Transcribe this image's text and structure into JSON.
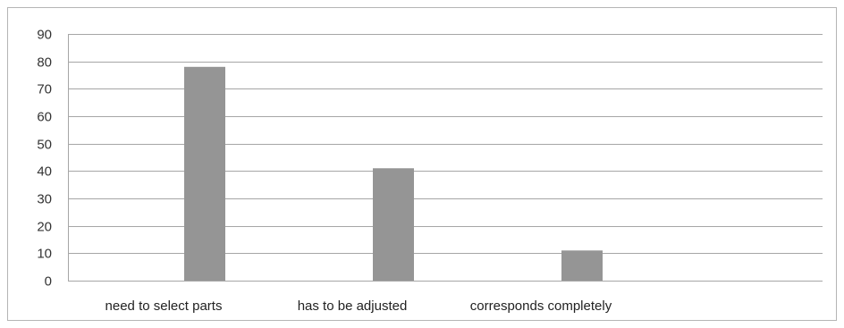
{
  "chart_data": {
    "type": "bar",
    "categories": [
      "need to select parts",
      "has to be adjusted",
      "corresponds completely"
    ],
    "series": [
      {
        "values": [
          78,
          41,
          11
        ],
        "color": "#959595"
      }
    ],
    "ylim": [
      0,
      90
    ],
    "yticks": [
      0,
      10,
      20,
      30,
      40,
      50,
      60,
      70,
      80,
      90
    ],
    "grid": true,
    "legend": "none",
    "gridColor": "#a6a6a6",
    "axisColor": "#a6a6a6"
  }
}
